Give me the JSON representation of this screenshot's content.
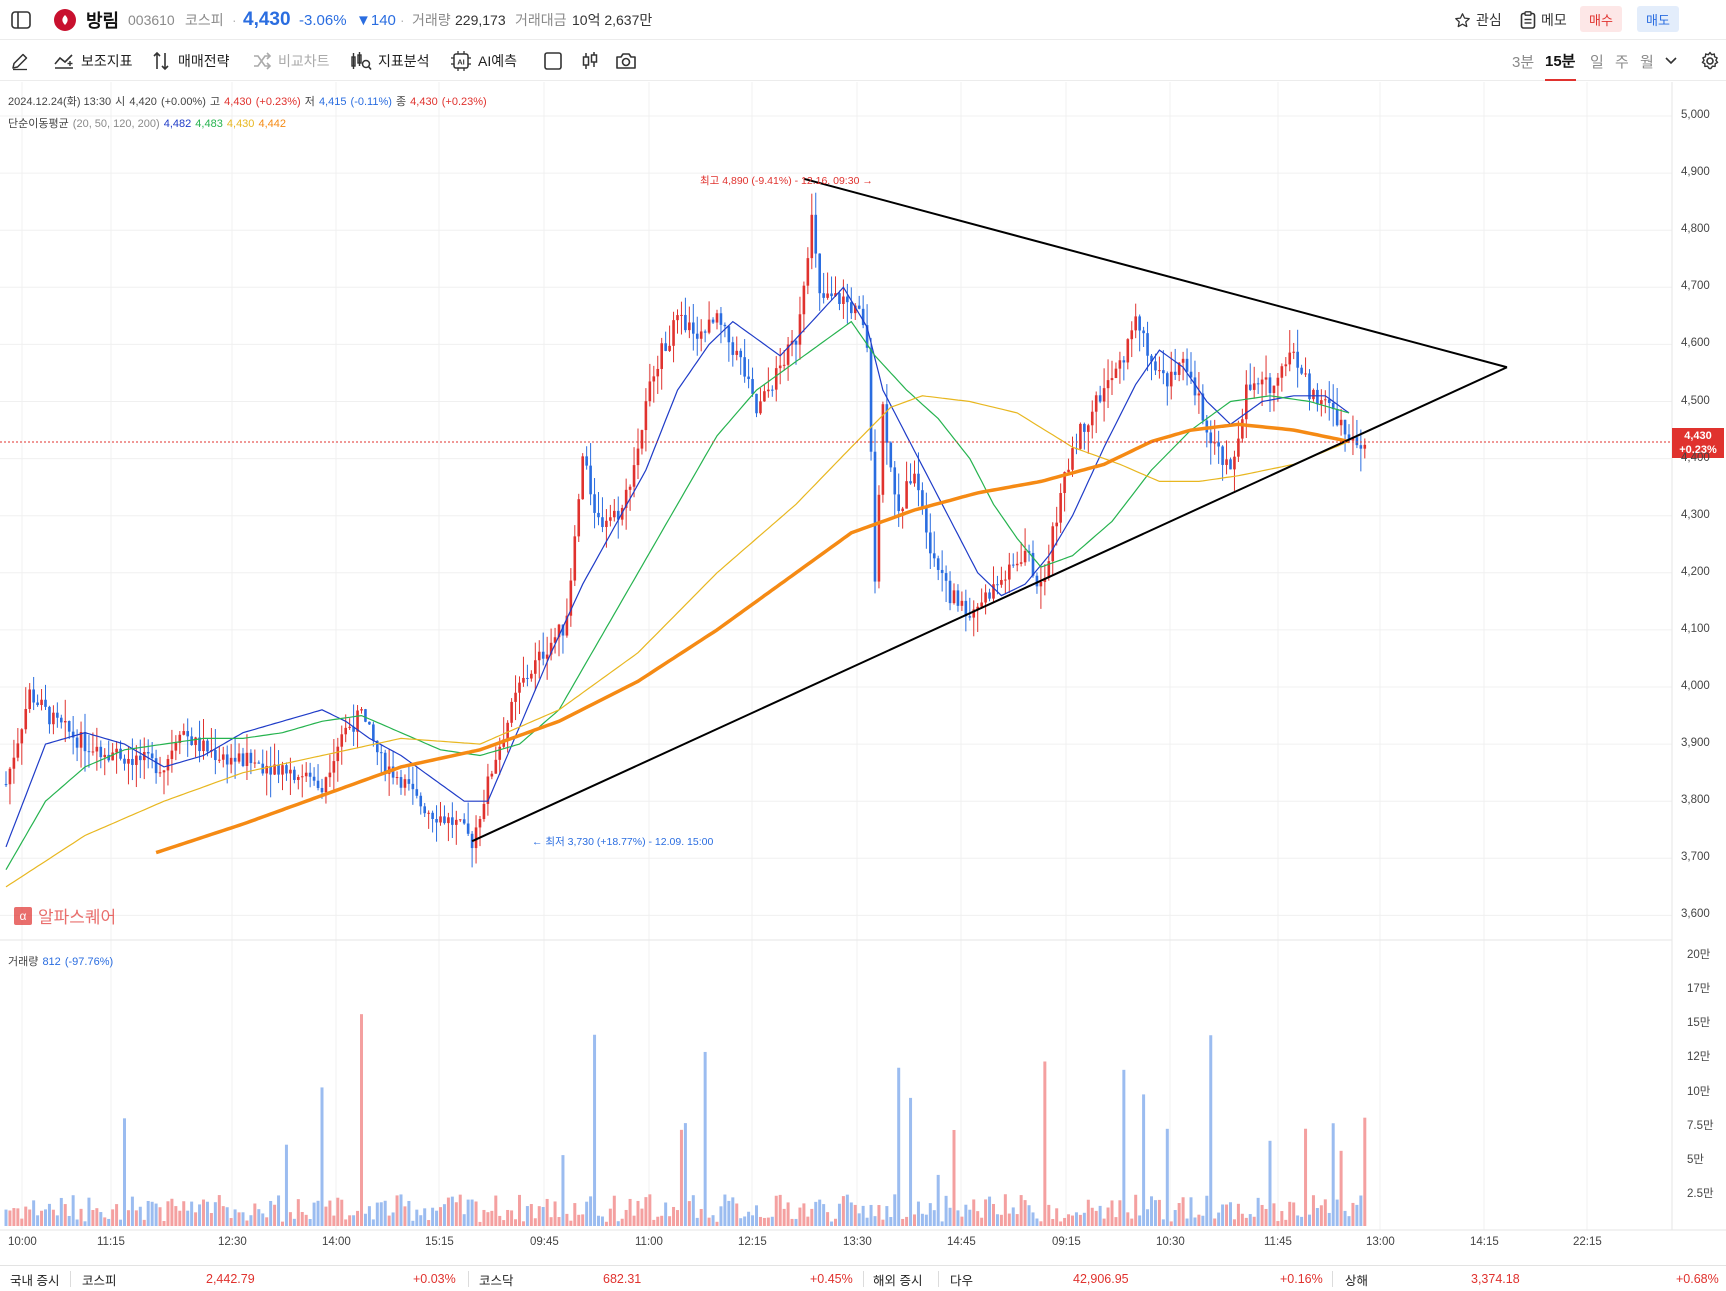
{
  "header": {
    "stock_name": "방림",
    "stock_code": "003610",
    "market": "코스피",
    "price": "4,430",
    "change_pct": "-3.06%",
    "change_abs": "▼140",
    "volume_label": "거래량",
    "volume_value": "229,173",
    "amount_label": "거래대금",
    "amount_value": "10억 2,637만",
    "watch_label": "관심",
    "memo_label": "메모",
    "buy_label": "매수",
    "sell_label": "매도",
    "colors": {
      "up": "#e0322e",
      "down": "#2a6de0"
    }
  },
  "toolbar": {
    "indicator_label": "보조지표",
    "strategy_label": "매매전략",
    "compare_label": "비교차트",
    "analysis_label": "지표분석",
    "ai_label": "AI예측",
    "periods": [
      "3분",
      "15분",
      "일",
      "주",
      "월"
    ],
    "selected_period": "15분",
    "icons": [
      "pencil-icon",
      "indicator-icon",
      "strategy-icon",
      "shuffle-icon",
      "analysis-icon",
      "ai-chip-icon",
      "square-icon",
      "candle-icon",
      "camera-icon",
      "chevron-down-icon",
      "gear-icon"
    ]
  },
  "info": {
    "date": "2024.12.24(화) 13:30",
    "open_label": "시",
    "open": "4,420",
    "open_pct": "(+0.00%)",
    "high_label": "고",
    "high": "4,430",
    "high_pct": "(+0.23%)",
    "low_label": "저",
    "low": "4,415",
    "low_pct": "(-0.11%)",
    "close_label": "종",
    "close": "4,430",
    "close_pct": "(+0.23%)",
    "ma_label": "단순이동평균",
    "ma_params": "(20, 50, 120, 200)",
    "ma_values": [
      "4,482",
      "4,483",
      "4,430",
      "4,442"
    ],
    "volume_label": "거래량",
    "volume_value": "812",
    "volume_pct": "(-97.76%)"
  },
  "annotations": {
    "high": "최고 4,890 (-9.41%) - 12.16. 09:30 →",
    "low": "← 최저 3,730 (+18.77%) - 12.09. 15:00"
  },
  "price_tag": {
    "price": "4,430",
    "pct": "+0.23%"
  },
  "watermark": "알파스퀘어",
  "chart_data": {
    "type": "candlestick",
    "interval": "15분",
    "ylim": [
      3580,
      5050
    ],
    "y_ticks": [
      "5,000",
      "4,900",
      "4,800",
      "4,700",
      "4,600",
      "4,500",
      "4,400",
      "4,300",
      "4,200",
      "4,100",
      "4,000",
      "3,900",
      "3,800",
      "3,700",
      "3,600"
    ],
    "x_ticks": [
      "10:00",
      "11:15",
      "12:30",
      "14:00",
      "15:15",
      "09:45",
      "11:00",
      "12:15",
      "13:30",
      "14:45",
      "09:15",
      "10:30",
      "11:45",
      "13:00",
      "14:15",
      "22:15"
    ],
    "volume_ticks": [
      "20만",
      "17만",
      "15만",
      "12만",
      "10만",
      "7.5만",
      "5만",
      "2.5만"
    ],
    "current_price": 4430,
    "high_point": {
      "price": 4890,
      "time": "12.16. 09:30"
    },
    "low_point": {
      "price": 3730,
      "time": "12.09. 15:00"
    },
    "price_path": [
      [
        0,
        3830
      ],
      [
        6,
        3990
      ],
      [
        12,
        3940
      ],
      [
        20,
        3900
      ],
      [
        30,
        3880
      ],
      [
        40,
        3860
      ],
      [
        44,
        3930
      ],
      [
        48,
        3900
      ],
      [
        54,
        3880
      ],
      [
        60,
        3870
      ],
      [
        70,
        3860
      ],
      [
        80,
        3830
      ],
      [
        85,
        3920
      ],
      [
        90,
        3950
      ],
      [
        95,
        3870
      ],
      [
        100,
        3840
      ],
      [
        104,
        3800
      ],
      [
        108,
        3780
      ],
      [
        114,
        3760
      ],
      [
        118,
        3730
      ],
      [
        124,
        3880
      ],
      [
        130,
        4000
      ],
      [
        138,
        4080
      ],
      [
        142,
        4110
      ],
      [
        146,
        4400
      ],
      [
        150,
        4290
      ],
      [
        156,
        4310
      ],
      [
        160,
        4420
      ],
      [
        164,
        4560
      ],
      [
        170,
        4640
      ],
      [
        176,
        4620
      ],
      [
        180,
        4640
      ],
      [
        186,
        4570
      ],
      [
        190,
        4480
      ],
      [
        196,
        4560
      ],
      [
        200,
        4610
      ],
      [
        204,
        4820
      ],
      [
        206,
        4680
      ],
      [
        212,
        4680
      ],
      [
        216,
        4650
      ],
      [
        218,
        4600
      ],
      [
        220,
        4200
      ],
      [
        222,
        4490
      ],
      [
        226,
        4300
      ],
      [
        230,
        4390
      ],
      [
        234,
        4250
      ],
      [
        238,
        4170
      ],
      [
        244,
        4130
      ],
      [
        248,
        4160
      ],
      [
        254,
        4200
      ],
      [
        258,
        4240
      ],
      [
        262,
        4170
      ],
      [
        266,
        4300
      ],
      [
        270,
        4420
      ],
      [
        276,
        4500
      ],
      [
        282,
        4560
      ],
      [
        286,
        4640
      ],
      [
        290,
        4580
      ],
      [
        294,
        4540
      ],
      [
        298,
        4560
      ],
      [
        302,
        4500
      ],
      [
        306,
        4420
      ],
      [
        310,
        4370
      ],
      [
        314,
        4520
      ],
      [
        320,
        4530
      ],
      [
        326,
        4590
      ],
      [
        330,
        4520
      ],
      [
        336,
        4480
      ],
      [
        340,
        4440
      ],
      [
        344,
        4430
      ]
    ],
    "series": [
      {
        "name": "20",
        "color": "#1f3cc8",
        "path": [
          [
            0,
            3720
          ],
          [
            10,
            3900
          ],
          [
            20,
            3920
          ],
          [
            30,
            3900
          ],
          [
            40,
            3860
          ],
          [
            50,
            3880
          ],
          [
            60,
            3920
          ],
          [
            70,
            3940
          ],
          [
            80,
            3960
          ],
          [
            86,
            3940
          ],
          [
            92,
            3910
          ],
          [
            100,
            3880
          ],
          [
            108,
            3840
          ],
          [
            116,
            3800
          ],
          [
            122,
            3800
          ],
          [
            130,
            3930
          ],
          [
            138,
            4060
          ],
          [
            146,
            4180
          ],
          [
            154,
            4280
          ],
          [
            162,
            4380
          ],
          [
            170,
            4520
          ],
          [
            178,
            4600
          ],
          [
            184,
            4640
          ],
          [
            190,
            4610
          ],
          [
            196,
            4580
          ],
          [
            204,
            4640
          ],
          [
            212,
            4700
          ],
          [
            218,
            4630
          ],
          [
            222,
            4520
          ],
          [
            228,
            4440
          ],
          [
            234,
            4360
          ],
          [
            240,
            4280
          ],
          [
            246,
            4200
          ],
          [
            252,
            4160
          ],
          [
            258,
            4180
          ],
          [
            264,
            4230
          ],
          [
            270,
            4300
          ],
          [
            278,
            4420
          ],
          [
            286,
            4530
          ],
          [
            292,
            4590
          ],
          [
            298,
            4560
          ],
          [
            304,
            4500
          ],
          [
            310,
            4460
          ],
          [
            318,
            4500
          ],
          [
            326,
            4510
          ],
          [
            334,
            4510
          ],
          [
            340,
            4480
          ]
        ]
      },
      {
        "name": "50",
        "color": "#26b34f",
        "path": [
          [
            0,
            3680
          ],
          [
            10,
            3800
          ],
          [
            20,
            3860
          ],
          [
            30,
            3890
          ],
          [
            40,
            3900
          ],
          [
            50,
            3910
          ],
          [
            60,
            3910
          ],
          [
            70,
            3920
          ],
          [
            80,
            3940
          ],
          [
            90,
            3950
          ],
          [
            100,
            3920
          ],
          [
            110,
            3890
          ],
          [
            120,
            3880
          ],
          [
            130,
            3900
          ],
          [
            140,
            3960
          ],
          [
            150,
            4080
          ],
          [
            160,
            4200
          ],
          [
            170,
            4320
          ],
          [
            180,
            4440
          ],
          [
            190,
            4520
          ],
          [
            200,
            4570
          ],
          [
            210,
            4620
          ],
          [
            214,
            4640
          ],
          [
            220,
            4580
          ],
          [
            228,
            4520
          ],
          [
            236,
            4470
          ],
          [
            244,
            4400
          ],
          [
            250,
            4320
          ],
          [
            256,
            4260
          ],
          [
            262,
            4210
          ],
          [
            270,
            4230
          ],
          [
            280,
            4290
          ],
          [
            290,
            4380
          ],
          [
            300,
            4450
          ],
          [
            310,
            4500
          ],
          [
            320,
            4510
          ],
          [
            330,
            4500
          ],
          [
            340,
            4480
          ]
        ]
      },
      {
        "name": "120",
        "color": "#e8b720",
        "path": [
          [
            0,
            3650
          ],
          [
            20,
            3740
          ],
          [
            40,
            3800
          ],
          [
            60,
            3850
          ],
          [
            80,
            3880
          ],
          [
            100,
            3910
          ],
          [
            120,
            3900
          ],
          [
            140,
            3960
          ],
          [
            160,
            4060
          ],
          [
            180,
            4200
          ],
          [
            200,
            4320
          ],
          [
            214,
            4420
          ],
          [
            224,
            4490
          ],
          [
            232,
            4510
          ],
          [
            244,
            4500
          ],
          [
            256,
            4480
          ],
          [
            270,
            4420
          ],
          [
            282,
            4390
          ],
          [
            292,
            4360
          ],
          [
            302,
            4360
          ],
          [
            312,
            4370
          ],
          [
            326,
            4390
          ],
          [
            340,
            4430
          ]
        ]
      },
      {
        "name": "200",
        "color": "#f58a14",
        "path": [
          [
            38,
            3710
          ],
          [
            60,
            3760
          ],
          [
            80,
            3810
          ],
          [
            100,
            3860
          ],
          [
            120,
            3890
          ],
          [
            140,
            3940
          ],
          [
            160,
            4010
          ],
          [
            180,
            4100
          ],
          [
            200,
            4200
          ],
          [
            214,
            4270
          ],
          [
            230,
            4310
          ],
          [
            246,
            4340
          ],
          [
            262,
            4360
          ],
          [
            278,
            4390
          ],
          [
            290,
            4430
          ],
          [
            300,
            4450
          ],
          [
            312,
            4460
          ],
          [
            326,
            4450
          ],
          [
            340,
            4430
          ]
        ]
      }
    ],
    "trendlines": [
      {
        "name": "upper",
        "from": [
          202,
          4890
        ],
        "to": [
          380,
          4560
        ]
      },
      {
        "name": "lower",
        "from": [
          118,
          3730
        ],
        "to": [
          380,
          4560
        ]
      }
    ],
    "volume_series_note": "mixed up/down bars"
  },
  "ticker": {
    "domestic_label": "국내 증시",
    "kospi_label": "코스피",
    "kospi_value": "2,442.79",
    "kospi_pct": "+0.03%",
    "kosdaq_label": "코스닥",
    "kosdaq_value": "682.31",
    "kosdaq_pct": "+0.45%",
    "overseas_label": "해외 증시",
    "dow_label": "다우",
    "dow_value": "42,906.95",
    "dow_pct": "+0.16%",
    "shanghai_label": "상해",
    "shanghai_value": "3,374.18",
    "shanghai_pct": "+0.68%"
  }
}
